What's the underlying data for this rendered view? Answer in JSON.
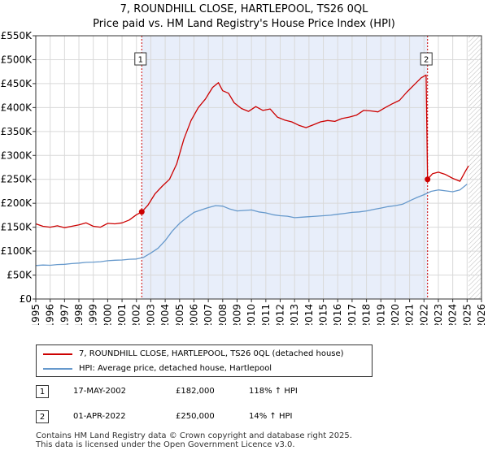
{
  "title_line1": "7, ROUNDHILL CLOSE, HARTLEPOOL, TS26 0QL",
  "title_line2": "Price paid vs. HM Land Registry's House Price Index (HPI)",
  "colors": {
    "property": "#cc0000",
    "hpi": "#6699cc",
    "shade": "#e8eefa",
    "grid": "#d9d9d9"
  },
  "legend": {
    "property_label": "7, ROUNDHILL CLOSE, HARTLEPOOL, TS26 0QL (detached house)",
    "hpi_label": "HPI: Average price, detached house, Hartlepool"
  },
  "transactions": [
    {
      "num": "1",
      "date": "17-MAY-2002",
      "price": "£182,000",
      "hpi": "118% ↑ HPI"
    },
    {
      "num": "2",
      "date": "01-APR-2022",
      "price": "£250,000",
      "hpi": "14% ↑ HPI"
    }
  ],
  "footer_line1": "Contains HM Land Registry data © Crown copyright and database right 2025.",
  "footer_line2": "This data is licensed under the Open Government Licence v3.0.",
  "chart_data": {
    "type": "line",
    "ylim": [
      0,
      550000
    ],
    "xlim": [
      1995.0,
      2026.0
    ],
    "y_ticks": [
      0,
      50000,
      100000,
      150000,
      200000,
      250000,
      300000,
      350000,
      400000,
      450000,
      500000,
      550000
    ],
    "y_tick_labels": [
      "£0",
      "£50K",
      "£100K",
      "£150K",
      "£200K",
      "£250K",
      "£300K",
      "£350K",
      "£400K",
      "£450K",
      "£500K",
      "£550K"
    ],
    "x_ticks": [
      1995,
      1996,
      1997,
      1998,
      1999,
      2000,
      2001,
      2002,
      2003,
      2004,
      2005,
      2006,
      2007,
      2008,
      2009,
      2010,
      2011,
      2012,
      2013,
      2014,
      2015,
      2016,
      2017,
      2018,
      2019,
      2020,
      2021,
      2022,
      2023,
      2024,
      2025,
      2026
    ],
    "x_tick_labels": [
      "1995",
      "1996",
      "1997",
      "1998",
      "1999",
      "2000",
      "2001",
      "2002",
      "2003",
      "2004",
      "2005",
      "2006",
      "2007",
      "2008",
      "2009",
      "2010",
      "2011",
      "2012",
      "2013",
      "2014",
      "2015",
      "2016",
      "2017",
      "2018",
      "2019",
      "2020",
      "2021",
      "2022",
      "2023",
      "2024",
      "2025",
      "2026"
    ],
    "shaded_ranges": [
      [
        2002.37,
        2022.25
      ]
    ],
    "hatched_from": 2025.1,
    "markers": [
      {
        "label": "1",
        "x": 2002.37,
        "y": 182000
      },
      {
        "label": "2",
        "x": 2022.25,
        "y": 250000
      }
    ],
    "series": [
      {
        "name": "7, ROUNDHILL CLOSE, HARTLEPOOL, TS26 0QL (detached house)",
        "x": [
          1995.0,
          1995.5,
          1996.0,
          1996.5,
          1997.0,
          1997.5,
          1998.0,
          1998.5,
          1999.0,
          1999.5,
          2000.0,
          2000.5,
          2001.0,
          2001.5,
          2002.0,
          2002.37,
          2002.8,
          2003.3,
          2003.8,
          2004.3,
          2004.8,
          2005.3,
          2005.8,
          2006.3,
          2006.8,
          2007.3,
          2007.7,
          2008.0,
          2008.4,
          2008.8,
          2009.3,
          2009.8,
          2010.3,
          2010.8,
          2011.3,
          2011.8,
          2012.3,
          2012.8,
          2013.3,
          2013.8,
          2014.3,
          2014.8,
          2015.3,
          2015.8,
          2016.3,
          2016.8,
          2017.3,
          2017.8,
          2018.3,
          2018.8,
          2019.3,
          2019.8,
          2020.3,
          2020.8,
          2021.3,
          2021.8,
          2022.15,
          2022.25,
          2022.6,
          2023.0,
          2023.5,
          2024.0,
          2024.5,
          2024.9,
          2025.1
        ],
        "y": [
          157000,
          152000,
          150000,
          153000,
          149000,
          152000,
          155000,
          159000,
          152000,
          150000,
          158000,
          157000,
          159000,
          165000,
          176000,
          182000,
          196000,
          220000,
          236000,
          250000,
          282000,
          334000,
          373000,
          400000,
          418000,
          442000,
          452000,
          435000,
          430000,
          410000,
          398000,
          392000,
          402000,
          394000,
          397000,
          380000,
          374000,
          370000,
          363000,
          358000,
          364000,
          370000,
          373000,
          371000,
          377000,
          380000,
          384000,
          394000,
          393000,
          391000,
          400000,
          408000,
          415000,
          432000,
          447000,
          462000,
          468000,
          250000,
          262000,
          265000,
          260000,
          252000,
          246000,
          268000,
          278000
        ]
      },
      {
        "name": "HPI: Average price, detached house, Hartlepool",
        "x": [
          1995.0,
          1995.5,
          1996.0,
          1996.5,
          1997.0,
          1997.5,
          1998.0,
          1998.5,
          1999.0,
          1999.5,
          2000.0,
          2000.5,
          2001.0,
          2001.5,
          2002.0,
          2002.5,
          2003.0,
          2003.5,
          2004.0,
          2004.5,
          2005.0,
          2005.5,
          2006.0,
          2006.5,
          2007.0,
          2007.5,
          2008.0,
          2008.5,
          2009.0,
          2009.5,
          2010.0,
          2010.5,
          2011.0,
          2011.5,
          2012.0,
          2012.5,
          2013.0,
          2013.5,
          2014.0,
          2014.5,
          2015.0,
          2015.5,
          2016.0,
          2016.5,
          2017.0,
          2017.5,
          2018.0,
          2018.5,
          2019.0,
          2019.5,
          2020.0,
          2020.5,
          2021.0,
          2021.5,
          2022.0,
          2022.5,
          2023.0,
          2023.5,
          2024.0,
          2024.5,
          2025.0
        ],
        "y": [
          70000,
          71000,
          70500,
          72000,
          72500,
          74000,
          75000,
          76500,
          77000,
          78000,
          80000,
          81000,
          81500,
          83000,
          83500,
          87000,
          96000,
          106000,
          122000,
          142000,
          158000,
          170000,
          181000,
          186000,
          191000,
          195000,
          194000,
          188000,
          184000,
          185000,
          186000,
          182000,
          180000,
          176000,
          174000,
          173000,
          170000,
          171000,
          172000,
          173000,
          174000,
          175000,
          177000,
          179000,
          181000,
          182000,
          184000,
          187000,
          190000,
          193000,
          195000,
          198000,
          205000,
          212000,
          218000,
          225000,
          228000,
          226000,
          224000,
          228000,
          240000
        ]
      }
    ]
  }
}
